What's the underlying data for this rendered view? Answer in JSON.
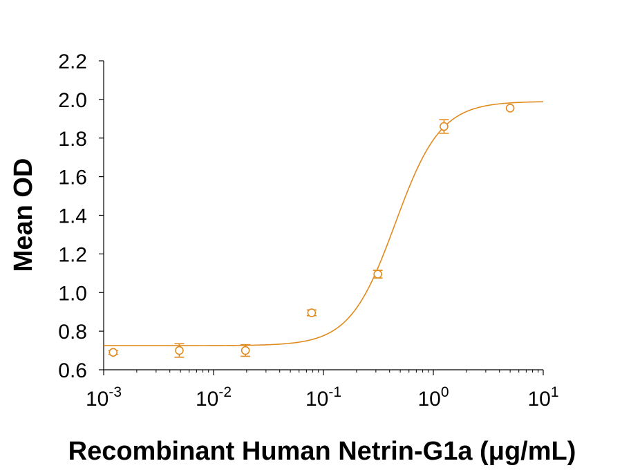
{
  "chart_data": {
    "type": "scatter",
    "title": "",
    "xlabel": "Recombinant Human Netrin-G1a (μg/mL)",
    "ylabel": "Mean OD",
    "x_scale": "log",
    "xlim": [
      0.001,
      10
    ],
    "ylim": [
      0.6,
      2.2
    ],
    "x_ticks": [
      {
        "value": 0.001,
        "base": "10",
        "exp": "-3"
      },
      {
        "value": 0.01,
        "base": "10",
        "exp": "-2"
      },
      {
        "value": 0.1,
        "base": "10",
        "exp": "-1"
      },
      {
        "value": 1,
        "base": "10",
        "exp": "0"
      },
      {
        "value": 10,
        "base": "10",
        "exp": "1"
      }
    ],
    "y_ticks": [
      "0.6",
      "0.8",
      "1.0",
      "1.2",
      "1.4",
      "1.6",
      "1.8",
      "2.0",
      "2.2"
    ],
    "grid": false,
    "legend": "none",
    "color": "#E08A1E",
    "series": [
      {
        "points": [
          {
            "x": 0.00122,
            "y": 0.69,
            "err": 0.01
          },
          {
            "x": 0.00488,
            "y": 0.7,
            "err": 0.035
          },
          {
            "x": 0.0195,
            "y": 0.7,
            "err": 0.03
          },
          {
            "x": 0.0781,
            "y": 0.895,
            "err": 0.015
          },
          {
            "x": 0.3125,
            "y": 1.095,
            "err": 0.02
          },
          {
            "x": 1.25,
            "y": 1.86,
            "err": 0.035
          },
          {
            "x": 5.0,
            "y": 1.955,
            "err": 0.0
          }
        ]
      }
    ],
    "fit_curve": {
      "model": "4PL",
      "bottom": 0.725,
      "top": 1.99,
      "ec50": 0.45,
      "hill": 2.1
    }
  }
}
